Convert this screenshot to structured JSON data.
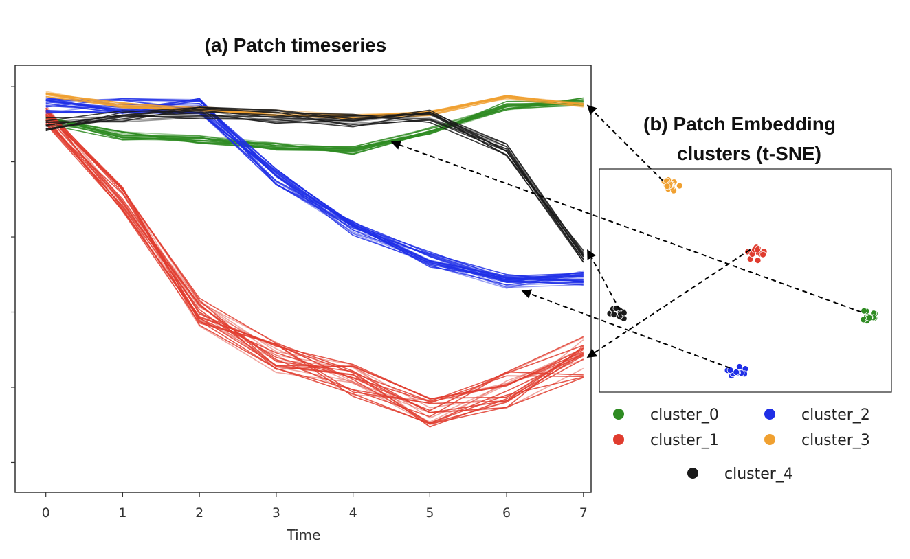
{
  "chart_data": [
    {
      "type": "line",
      "title": "(a) Patch timeseries",
      "xlabel": "Time",
      "ylabel": "",
      "x": [
        0,
        1,
        2,
        3,
        4,
        5,
        6,
        7
      ],
      "xlim": [
        -0.4,
        7.1
      ],
      "ylim": [
        0,
        1
      ],
      "y_ticks_labeled": false,
      "series": [
        {
          "name": "cluster_0",
          "color": "#2e8b22",
          "values": [
            0.91,
            0.87,
            0.86,
            0.84,
            0.83,
            0.88,
            0.95,
            0.96
          ]
        },
        {
          "name": "cluster_1",
          "color": "#e03c2e",
          "values": [
            0.92,
            0.7,
            0.4,
            0.28,
            0.22,
            0.14,
            0.19,
            0.28
          ]
        },
        {
          "name": "cluster_2",
          "color": "#1f2fe6",
          "values": [
            0.95,
            0.95,
            0.95,
            0.76,
            0.62,
            0.54,
            0.48,
            0.49
          ]
        },
        {
          "name": "cluster_3",
          "color": "#f0a030",
          "values": [
            0.98,
            0.95,
            0.94,
            0.93,
            0.92,
            0.93,
            0.97,
            0.95
          ]
        },
        {
          "name": "cluster_4",
          "color": "#1a1a1a",
          "values": [
            0.9,
            0.92,
            0.93,
            0.92,
            0.91,
            0.92,
            0.83,
            0.55
          ]
        }
      ]
    },
    {
      "type": "scatter",
      "title": "(b) Patch Embedding clusters (t-SNE)",
      "title_lines": [
        "(b) Patch Embedding",
        "clusters (t-SNE)"
      ],
      "axes_visible": false,
      "xlim": [
        0,
        100
      ],
      "ylim": [
        0,
        100
      ],
      "series": [
        {
          "name": "cluster_0",
          "color": "#2e8b22",
          "center": [
            92,
            34
          ]
        },
        {
          "name": "cluster_1",
          "color": "#e03c2e",
          "center": [
            54,
            62
          ]
        },
        {
          "name": "cluster_2",
          "color": "#1f2fe6",
          "center": [
            47,
            9
          ]
        },
        {
          "name": "cluster_3",
          "color": "#f0a030",
          "center": [
            24,
            93
          ]
        },
        {
          "name": "cluster_4",
          "color": "#1a1a1a",
          "center": [
            6,
            35
          ]
        }
      ],
      "legend": [
        "cluster_0",
        "cluster_1",
        "cluster_2",
        "cluster_3",
        "cluster_4"
      ]
    }
  ],
  "annotations": [
    {
      "type": "arrow",
      "from_cluster": "cluster_3",
      "to_line": "cluster_3"
    },
    {
      "type": "arrow",
      "from_cluster": "cluster_0",
      "to_line": "cluster_0"
    },
    {
      "type": "arrow",
      "from_cluster": "cluster_1",
      "to_line": "cluster_1"
    },
    {
      "type": "arrow",
      "from_cluster": "cluster_4",
      "to_line": "cluster_4"
    },
    {
      "type": "arrow",
      "from_cluster": "cluster_2",
      "to_line": "cluster_2"
    }
  ]
}
